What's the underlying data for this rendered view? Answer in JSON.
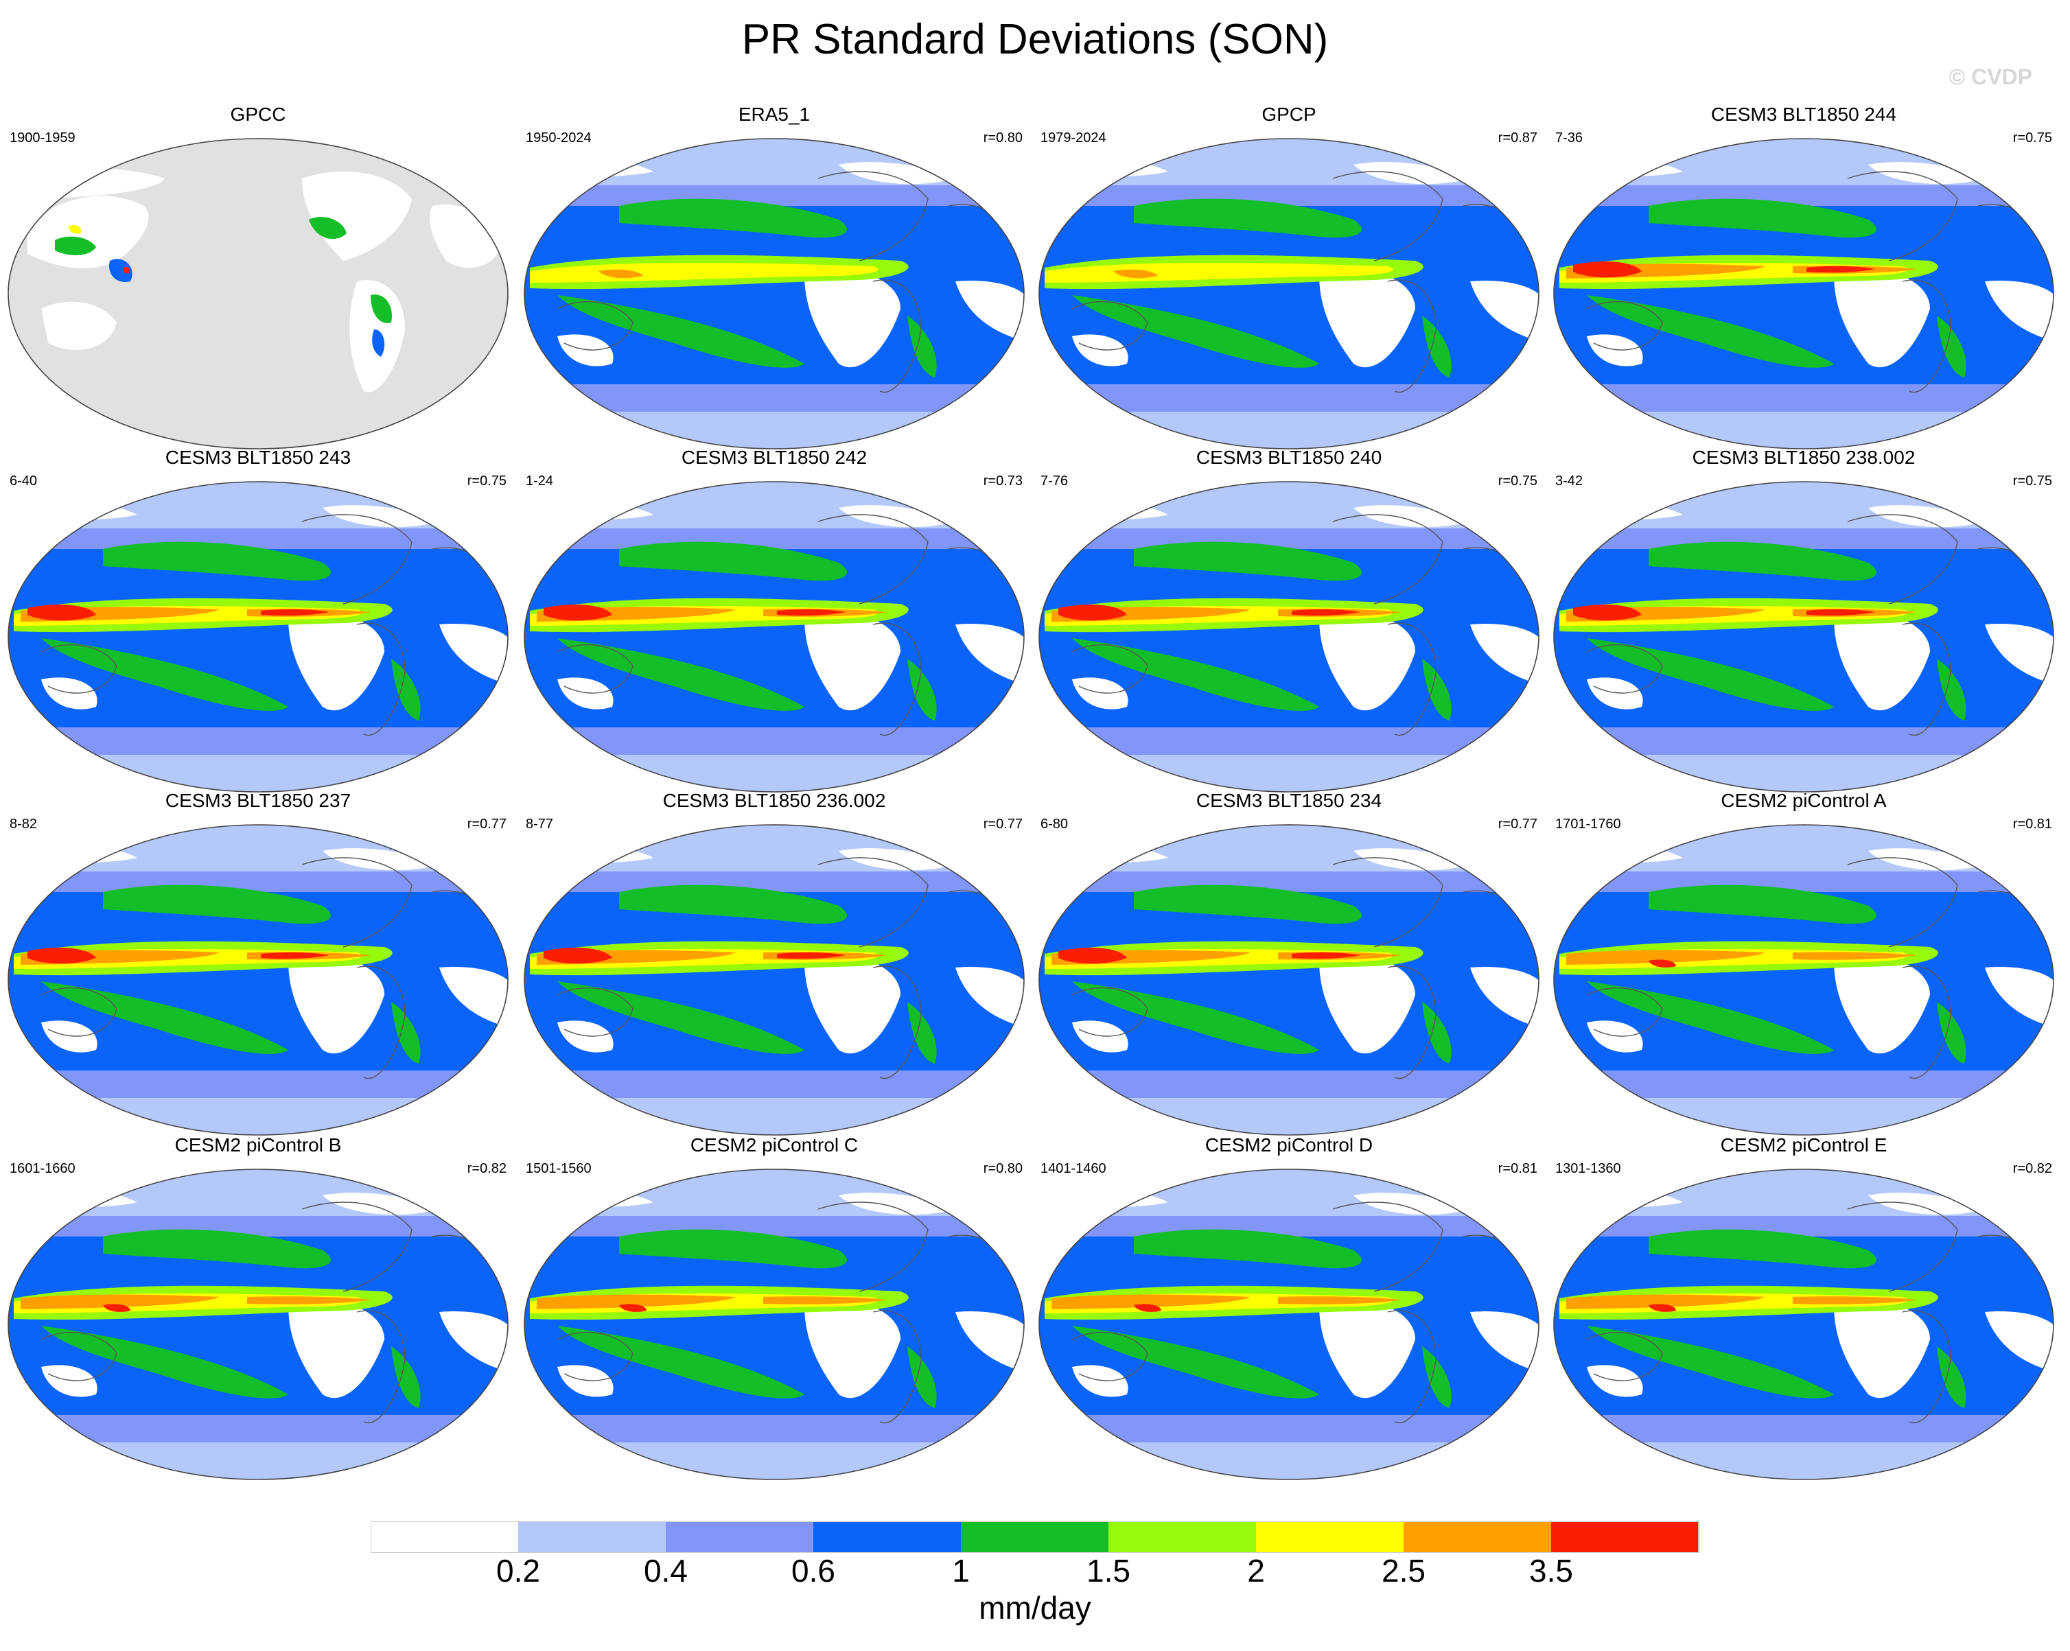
{
  "title": "PR Standard Deviations (SON)",
  "watermark": "© CVDP",
  "panels": [
    {
      "title": "GPCC",
      "years": "1900-1959",
      "corr": "",
      "type": "obs-land"
    },
    {
      "title": "ERA5_1",
      "years": "1950-2024",
      "corr": "r=0.80",
      "type": "obs"
    },
    {
      "title": "GPCP",
      "years": "1979-2024",
      "corr": "r=0.87",
      "type": "obs"
    },
    {
      "title": "CESM3 BLT1850 244",
      "years": "7-36",
      "corr": "r=0.75",
      "type": "model"
    },
    {
      "title": "CESM3 BLT1850 243",
      "years": "6-40",
      "corr": "r=0.75",
      "type": "model"
    },
    {
      "title": "CESM3 BLT1850 242",
      "years": "1-24",
      "corr": "r=0.73",
      "type": "model"
    },
    {
      "title": "CESM3 BLT1850 240",
      "years": "7-76",
      "corr": "r=0.75",
      "type": "model"
    },
    {
      "title": "CESM3 BLT1850 238.002",
      "years": "3-42",
      "corr": "r=0.75",
      "type": "model"
    },
    {
      "title": "CESM3 BLT1850 237",
      "years": "8-82",
      "corr": "r=0.77",
      "type": "model"
    },
    {
      "title": "CESM3 BLT1850 236.002",
      "years": "8-77",
      "corr": "r=0.77",
      "type": "model"
    },
    {
      "title": "CESM3 BLT1850 234",
      "years": "6-80",
      "corr": "r=0.77",
      "type": "model"
    },
    {
      "title": "CESM2 piControl A",
      "years": "1701-1760",
      "corr": "r=0.81",
      "type": "model2"
    },
    {
      "title": "CESM2 piControl B",
      "years": "1601-1660",
      "corr": "r=0.82",
      "type": "model2"
    },
    {
      "title": "CESM2 piControl C",
      "years": "1501-1560",
      "corr": "r=0.80",
      "type": "model2"
    },
    {
      "title": "CESM2 piControl D",
      "years": "1401-1460",
      "corr": "r=0.81",
      "type": "model2"
    },
    {
      "title": "CESM2 piControl E",
      "years": "1301-1360",
      "corr": "r=0.82",
      "type": "model2"
    }
  ],
  "colorbar": {
    "colors": [
      "#ffffff",
      "#b4c8fa",
      "#8296fa",
      "#0a64fa",
      "#14be28",
      "#96fa0a",
      "#ffff00",
      "#ffa000",
      "#fa1e00"
    ],
    "labels": [
      "0.2",
      "0.4",
      "0.6",
      "1",
      "1.5",
      "2",
      "2.5",
      "3.5"
    ],
    "units": "mm/day"
  }
}
